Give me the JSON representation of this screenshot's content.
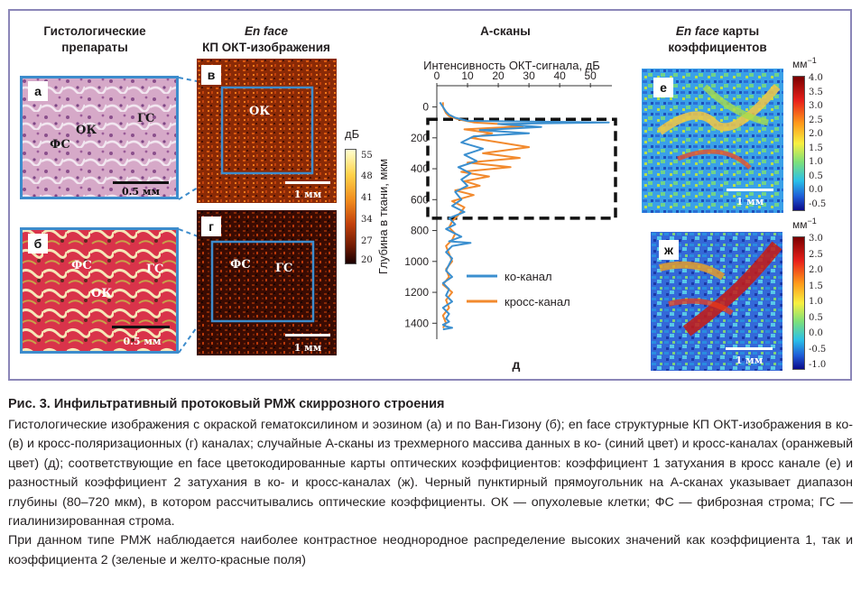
{
  "headers": {
    "col1": "Гистологические препараты",
    "col2_italic": "En face",
    "col2_rest": "КП ОКТ-изображения",
    "col3": "А-сканы",
    "col4_italic": "En face",
    "col4_rest": " карты коэффициентов"
  },
  "panels": {
    "a": {
      "letter": "а",
      "labels": [
        "ОК",
        "ГС",
        "ФС"
      ],
      "scale": "0.5 мм"
    },
    "b": {
      "letter": "б",
      "labels": [
        "ФС",
        "ГС",
        "ОК"
      ],
      "scale": "0.5 мм"
    },
    "v": {
      "letter": "в",
      "labels": [
        "ОК"
      ],
      "scale": "1 мм"
    },
    "g": {
      "letter": "г",
      "labels": [
        "ФС",
        "ГС"
      ],
      "scale": "1 мм"
    },
    "e": {
      "letter": "е",
      "scale": "1 мм"
    },
    "zh": {
      "letter": "ж",
      "scale": "1 мм"
    }
  },
  "db_colorbar": {
    "unit": "дБ",
    "ticks": [
      "55",
      "48",
      "41",
      "34",
      "27",
      "20"
    ]
  },
  "coef_colorbars": {
    "e": {
      "unit": "мм",
      "unit_sup": "−1",
      "ticks": [
        "4.0",
        "3.5",
        "3.0",
        "2.5",
        "2.0",
        "1.5",
        "1.0",
        "0.5",
        "0.0",
        "-0.5"
      ]
    },
    "zh": {
      "unit": "мм",
      "unit_sup": "−1",
      "ticks": [
        "3.0",
        "2.5",
        "2.0",
        "1.5",
        "1.0",
        "0.5",
        "0.0",
        "-0.5",
        "-1.0"
      ]
    }
  },
  "chart_data": {
    "type": "line",
    "xlabel": "Интенсивность ОКТ-сигнала, дБ",
    "ylabel": "Глубина в ткани, мкм",
    "panel_letter": "д",
    "xlim": [
      0,
      57
    ],
    "ylim": [
      1480,
      -120
    ],
    "xticks": [
      0,
      10,
      20,
      30,
      40,
      50
    ],
    "yticks": [
      0,
      200,
      400,
      600,
      800,
      1000,
      1200,
      1400
    ],
    "dashed_box_depth": [
      80,
      720
    ],
    "legend_position": "lower-right",
    "series": [
      {
        "name": "ко-канал",
        "color": "#3b8fcf",
        "x": [
          1,
          2,
          3,
          4,
          6,
          10,
          56,
          20,
          34,
          14,
          30,
          12,
          8,
          15,
          9,
          13,
          7,
          11,
          8,
          10,
          6,
          8,
          5,
          9,
          4,
          6,
          3,
          5,
          8,
          4,
          11,
          5,
          3,
          5,
          4,
          3,
          5,
          2,
          4,
          3,
          5,
          2,
          4,
          3,
          4,
          2,
          3,
          5,
          2
        ],
        "y": [
          -30,
          0,
          30,
          50,
          70,
          90,
          100,
          110,
          130,
          150,
          170,
          190,
          230,
          270,
          310,
          350,
          390,
          430,
          470,
          510,
          550,
          600,
          640,
          680,
          720,
          760,
          790,
          810,
          840,
          870,
          880,
          900,
          940,
          980,
          1020,
          1060,
          1100,
          1140,
          1180,
          1220,
          1260,
          1300,
          1340,
          1370,
          1390,
          1410,
          1420,
          1430,
          1440
        ]
      },
      {
        "name": "кросс-канал",
        "color": "#f28a2e",
        "x": [
          2,
          2,
          3,
          4,
          7,
          12,
          20,
          28,
          9,
          18,
          11,
          30,
          15,
          27,
          10,
          24,
          8,
          17,
          9,
          14,
          6,
          12,
          5,
          9,
          7,
          5,
          4,
          6,
          5,
          3,
          4,
          5,
          3,
          4,
          2,
          5,
          3,
          4,
          2,
          3,
          2
        ],
        "y": [
          -30,
          0,
          40,
          60,
          80,
          100,
          110,
          125,
          145,
          170,
          200,
          260,
          300,
          330,
          360,
          390,
          420,
          450,
          480,
          510,
          540,
          570,
          610,
          650,
          700,
          740,
          780,
          820,
          860,
          900,
          950,
          1000,
          1050,
          1100,
          1150,
          1200,
          1250,
          1300,
          1350,
          1400,
          1430
        ]
      }
    ]
  },
  "caption": {
    "title": "Рис. 3. Инфильтративный протоковый РМЖ скиррозного строения",
    "p1": "Гистологические изображения с окраской гематоксилином и эозином (а) и по Ван-Гизону (б); en face структурные КП ОКТ-изображения в ко- (в) и кросс-поляризационных (г) каналах; случайные А-сканы из трехмерного массива данных в ко- (синий цвет) и кросс-каналах (оранжевый цвет) (д); соответствующие en face цветокодированные карты оптических коэффициентов: коэффициент 1 затухания в кросс канале (е) и разностный коэффициент 2 затухания в ко- и кросс-каналах (ж). Черный пунктирный прямоугольник на А-сканах указывает диапазон глубины (80–720 мкм), в котором рассчитывались оптические коэффициенты. ОК — опухолевые клетки; ФС — фиброзная строма; ГС — гиалинизированная строма.",
    "p2": "При данном типе РМЖ наблюдается наиболее контрастное неоднородное распределение высоких значений как коэффициента 1, так и коэффициента 2 (зеленые и желто-красные поля)"
  }
}
